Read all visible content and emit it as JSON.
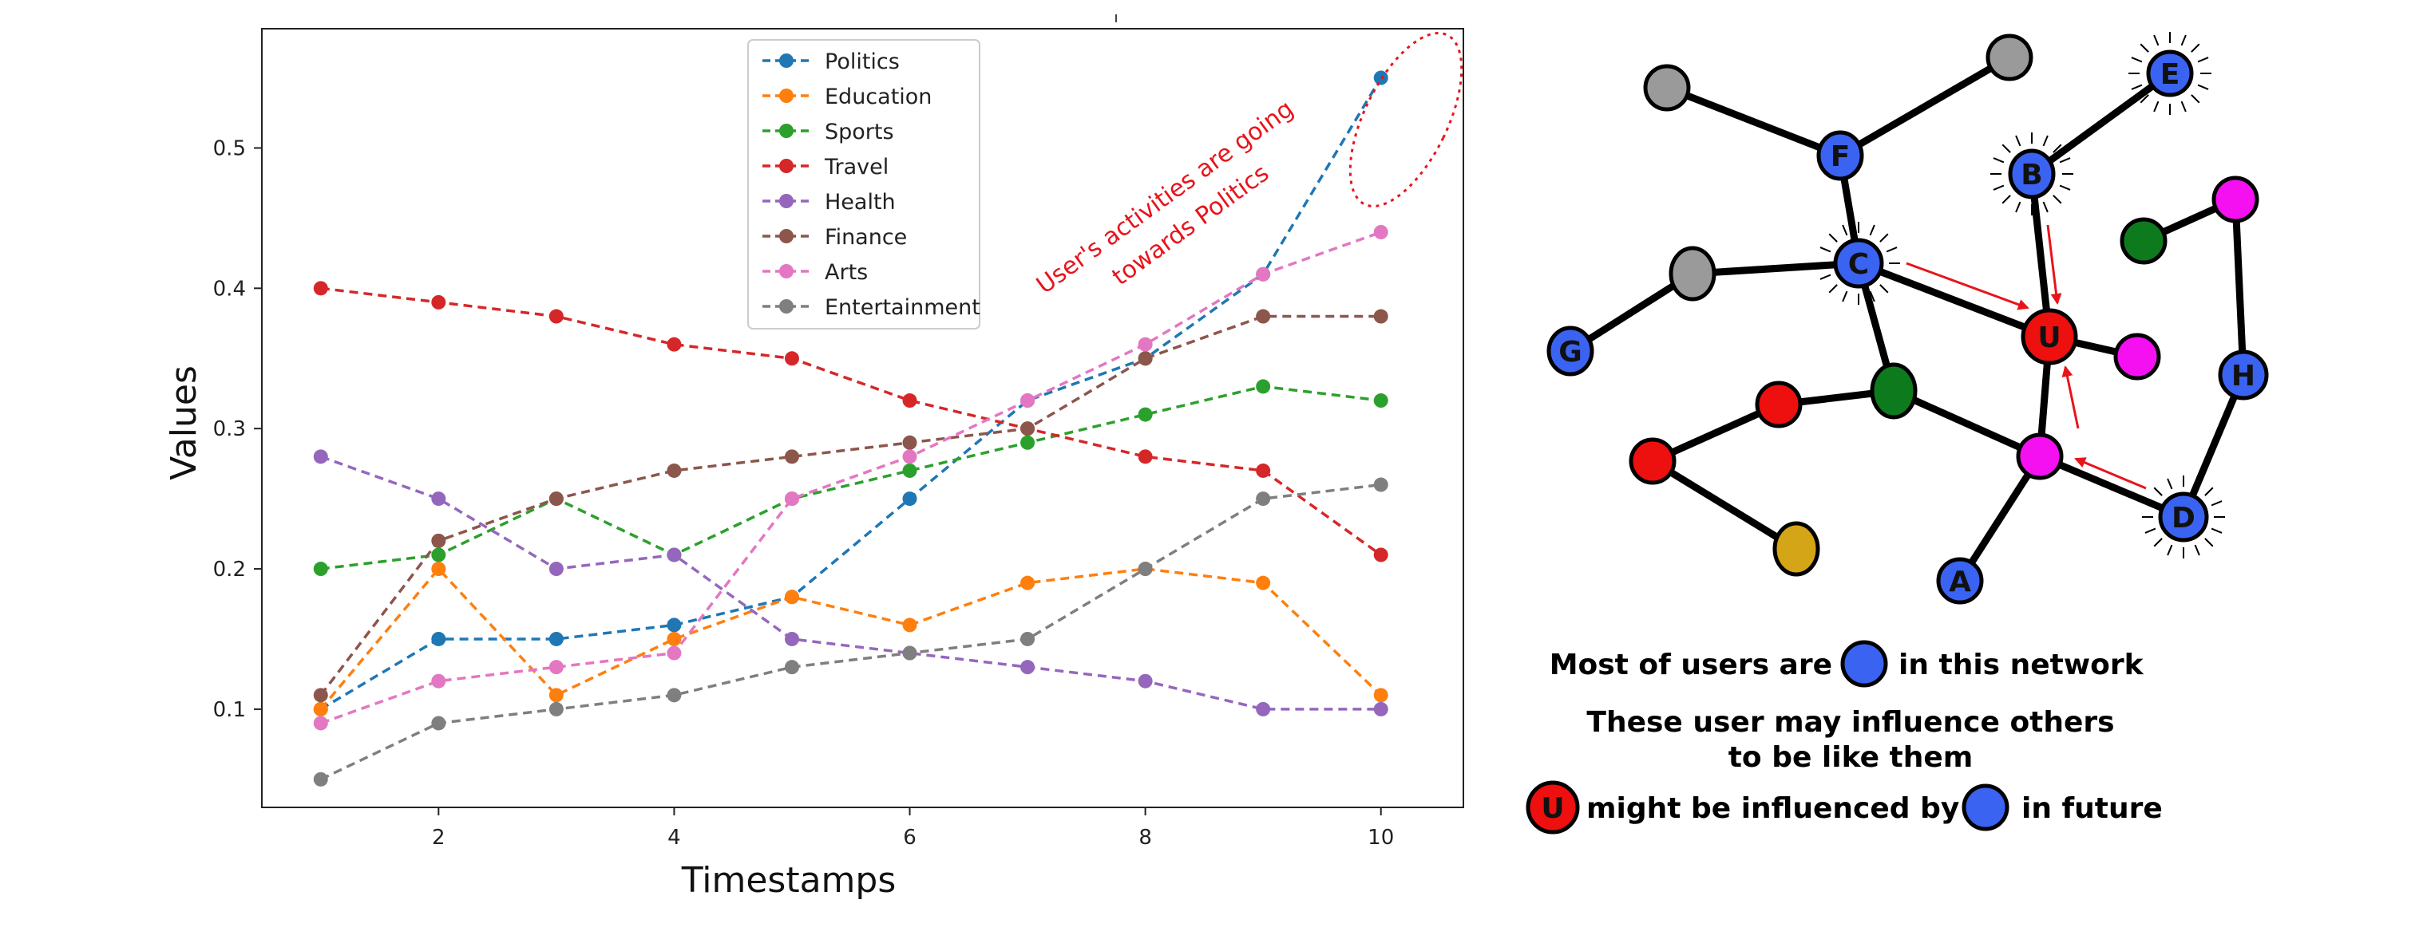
{
  "chart_data": {
    "type": "line",
    "xlabel": "Timestamps",
    "ylabel": "Values",
    "xlim": [
      0.5,
      10.7
    ],
    "ylim": [
      0.03,
      0.585
    ],
    "xticks": [
      2,
      4,
      6,
      8,
      10
    ],
    "yticks": [
      0.1,
      0.2,
      0.3,
      0.4,
      0.5
    ],
    "xtick_labels": [
      "2",
      "4",
      "6",
      "8",
      "10"
    ],
    "ytick_labels": [
      "0.1",
      "0.2",
      "0.3",
      "0.4",
      "0.5"
    ],
    "x": [
      1,
      2,
      3,
      4,
      5,
      6,
      7,
      8,
      9,
      10
    ],
    "legend_position": "top-center",
    "series": [
      {
        "name": "Politics",
        "color": "#1f77b4",
        "values": [
          0.1,
          0.15,
          0.15,
          0.16,
          0.18,
          0.25,
          0.32,
          0.35,
          0.41,
          0.55
        ]
      },
      {
        "name": "Education",
        "color": "#ff7f0e",
        "values": [
          0.1,
          0.2,
          0.11,
          0.15,
          0.18,
          0.16,
          0.19,
          0.2,
          0.19,
          0.11
        ]
      },
      {
        "name": "Sports",
        "color": "#2ca02c",
        "values": [
          0.2,
          0.21,
          0.25,
          0.21,
          0.25,
          0.27,
          0.29,
          0.31,
          0.33,
          0.32
        ]
      },
      {
        "name": "Travel",
        "color": "#d62728",
        "values": [
          0.4,
          0.39,
          0.38,
          0.36,
          0.35,
          0.32,
          0.3,
          0.28,
          0.27,
          0.21
        ]
      },
      {
        "name": "Health",
        "color": "#9467bd",
        "values": [
          0.28,
          0.25,
          0.2,
          0.21,
          0.15,
          0.14,
          0.13,
          0.12,
          0.1,
          0.1
        ]
      },
      {
        "name": "Finance",
        "color": "#8c564b",
        "values": [
          0.11,
          0.22,
          0.25,
          0.27,
          0.28,
          0.29,
          0.3,
          0.35,
          0.38,
          0.38
        ]
      },
      {
        "name": "Arts",
        "color": "#e377c2",
        "values": [
          0.09,
          0.12,
          0.13,
          0.14,
          0.25,
          0.28,
          0.32,
          0.36,
          0.41,
          0.44
        ]
      },
      {
        "name": "Entertainment",
        "color": "#7f7f7f",
        "values": [
          0.05,
          0.09,
          0.1,
          0.11,
          0.13,
          0.14,
          0.15,
          0.2,
          0.25,
          0.26
        ]
      }
    ],
    "annotation": {
      "lines": [
        "User's activities are going",
        "towards Politics"
      ],
      "color": "#e8141c",
      "target_series": "Politics",
      "target_x": 10
    }
  },
  "network": {
    "colors": {
      "blue": "#3a63f2",
      "red": "#ee0f0f",
      "green": "#0d7a1e",
      "magenta": "#f410f0",
      "gray": "#9a9a9a",
      "gold": "#d4a516",
      "arrow": "#e8141c"
    },
    "node_labels": {
      "E": "E",
      "B": "B",
      "F": "F",
      "C": "C",
      "U": "U",
      "G": "G",
      "H": "H",
      "D": "D",
      "A": "A"
    },
    "captions": {
      "line1_before": "Most of users are",
      "line1_after": "in this network",
      "line2": "These user may influence others",
      "line3": "to be like them",
      "line4_middle": "might be influenced by",
      "line4_after": "in future",
      "u_label": "U"
    }
  }
}
